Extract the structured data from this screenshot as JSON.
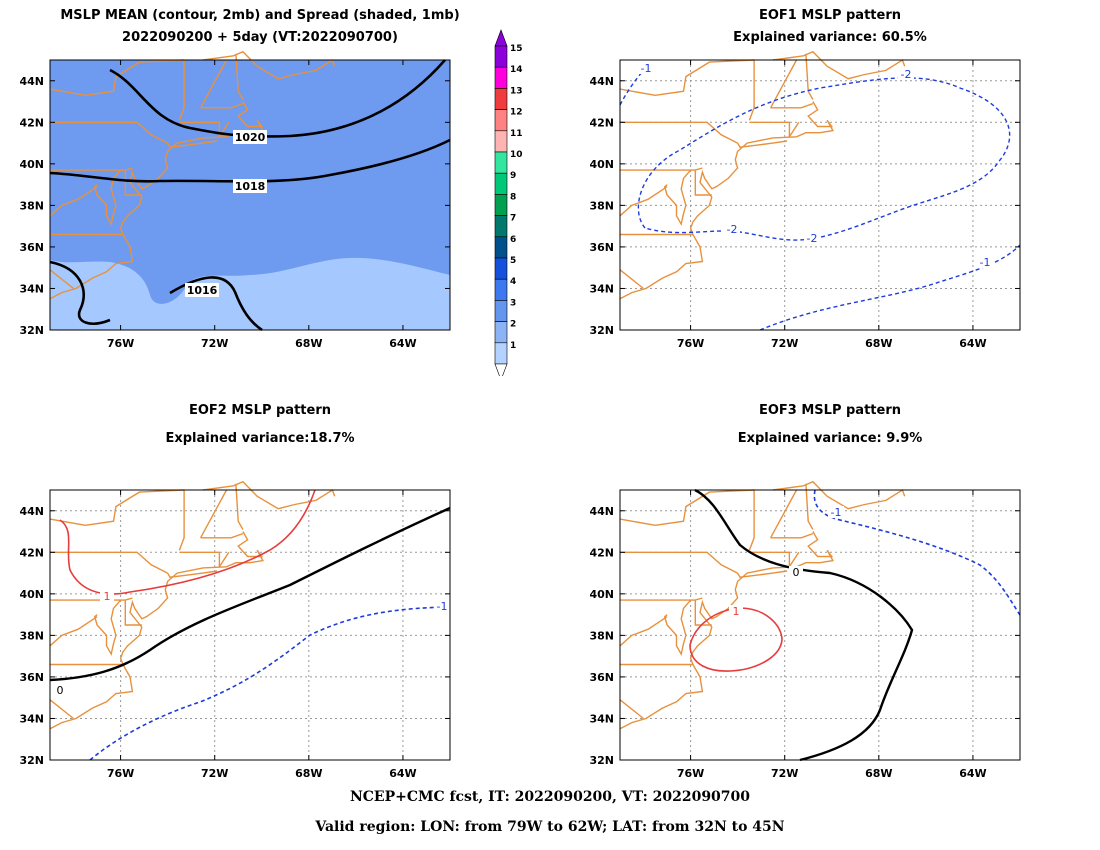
{
  "panels": {
    "mean": {
      "title1": "MSLP MEAN (contour, 2mb) and Spread (shaded, 1mb)",
      "title2": "2022090200 + 5day (VT:2022090700)",
      "contour_labels": [
        "1020",
        "1018",
        "1016"
      ]
    },
    "eof1": {
      "title1": "EOF1 MSLP pattern",
      "title2": "Explained variance: 60.5%",
      "contour_labels": [
        "-1",
        "-2",
        "-2",
        "-2",
        "-1"
      ]
    },
    "eof2": {
      "title1": "EOF2 MSLP pattern",
      "title2": "Explained variance:18.7%",
      "contour_labels": [
        "1",
        "0",
        "-1"
      ]
    },
    "eof3": {
      "title1": "EOF3 MSLP pattern",
      "title2": "Explained variance: 9.9%",
      "contour_labels": [
        "-1",
        "0",
        "1"
      ]
    }
  },
  "axes": {
    "lat_labels": [
      "44N",
      "42N",
      "40N",
      "38N",
      "36N",
      "34N",
      "32N"
    ],
    "lon_labels": [
      "76W",
      "72W",
      "68W",
      "64W"
    ]
  },
  "colorbar": {
    "levels": [
      "1",
      "2",
      "3",
      "4",
      "5",
      "6",
      "7",
      "8",
      "9",
      "10",
      "11",
      "12",
      "13",
      "14",
      "15"
    ],
    "colors": [
      "#b4d2ff",
      "#8cb4f5",
      "#6496f0",
      "#3c78f0",
      "#1450dc",
      "#00508c",
      "#00786e",
      "#00a050",
      "#00c878",
      "#32e6a0",
      "#ffb4b4",
      "#ff8282",
      "#f03c3c",
      "#ff00dc",
      "#8c00dc"
    ]
  },
  "colors": {
    "spread_light": "#a5c8ff",
    "spread_mid": "#6e9bf0",
    "coast": "#e8913c",
    "grid": "#999999",
    "neg": "#1e3cdc",
    "pos": "#e63c3c"
  },
  "footer": {
    "line1": "NCEP+CMC fcst, IT: 2022090200, VT: 2022090700",
    "line2": "Valid region: LON: from 79W to 62W; LAT: from 32N to 45N"
  }
}
